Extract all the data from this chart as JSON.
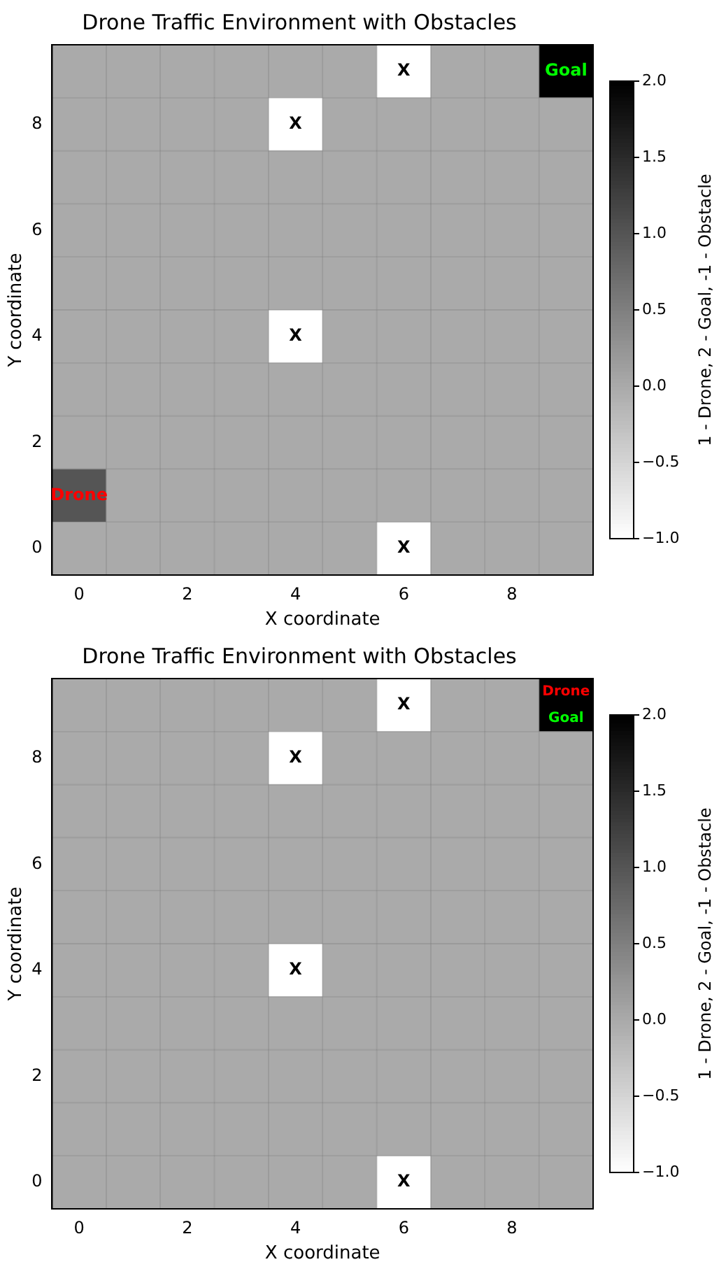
{
  "chart_data": [
    {
      "type": "heatmap",
      "title": "Drone Traffic Environment with Obstacles",
      "xlabel": "X coordinate",
      "ylabel": "Y coordinate",
      "clabel": "1 - Drone, 2 - Goal, -1 - Obstacle",
      "grid": true,
      "categories": [
        "0",
        null,
        "2",
        null,
        "4",
        null,
        "6",
        null,
        "8",
        null
      ],
      "y_categories": [
        null,
        "8",
        null,
        "6",
        null,
        "4",
        null,
        "2",
        null,
        "0"
      ],
      "cells": [
        [
          0,
          0,
          0,
          0,
          0,
          0,
          -1,
          0,
          0,
          2
        ],
        [
          0,
          0,
          0,
          0,
          -1,
          0,
          0,
          0,
          0,
          0
        ],
        [
          0,
          0,
          0,
          0,
          0,
          0,
          0,
          0,
          0,
          0
        ],
        [
          0,
          0,
          0,
          0,
          0,
          0,
          0,
          0,
          0,
          0
        ],
        [
          0,
          0,
          0,
          0,
          0,
          0,
          0,
          0,
          0,
          0
        ],
        [
          0,
          0,
          0,
          0,
          -1,
          0,
          0,
          0,
          0,
          0
        ],
        [
          0,
          0,
          0,
          0,
          0,
          0,
          0,
          0,
          0,
          0
        ],
        [
          0,
          0,
          0,
          0,
          0,
          0,
          0,
          0,
          0,
          0
        ],
        [
          1,
          0,
          0,
          0,
          0,
          0,
          0,
          0,
          0,
          0
        ],
        [
          0,
          0,
          0,
          0,
          0,
          0,
          -1,
          0,
          0,
          0
        ]
      ],
      "cell_labels": [
        [
          null,
          null,
          null,
          null,
          null,
          null,
          "X",
          null,
          null,
          "Goal"
        ],
        [
          null,
          null,
          null,
          null,
          "X",
          null,
          null,
          null,
          null,
          null
        ],
        [
          null,
          null,
          null,
          null,
          null,
          null,
          null,
          null,
          null,
          null
        ],
        [
          null,
          null,
          null,
          null,
          null,
          null,
          null,
          null,
          null,
          null
        ],
        [
          null,
          null,
          null,
          null,
          null,
          null,
          null,
          null,
          null,
          null
        ],
        [
          null,
          null,
          null,
          null,
          "X",
          null,
          null,
          null,
          null,
          null
        ],
        [
          null,
          null,
          null,
          null,
          null,
          null,
          null,
          null,
          null,
          null
        ],
        [
          null,
          null,
          null,
          null,
          null,
          null,
          null,
          null,
          null,
          null
        ],
        [
          "Drone",
          null,
          null,
          null,
          null,
          null,
          null,
          null,
          null,
          null
        ],
        [
          null,
          null,
          null,
          null,
          null,
          null,
          "X",
          null,
          null,
          null
        ]
      ],
      "clim": [
        -1,
        2
      ],
      "cticks": [
        {
          "value": -1,
          "label": "−1.0"
        },
        -0.5,
        {
          "value": 0,
          "label": "0.0"
        },
        0.5,
        {
          "value": 1,
          "label": "1.0"
        },
        1.5,
        {
          "value": 2,
          "label": "2.0"
        }
      ]
    },
    {
      "type": "heatmap",
      "title": "Drone Traffic Environment with Obstacles",
      "xlabel": "X coordinate",
      "ylabel": "Y coordinate",
      "clabel": "1 - Drone, 2 - Goal, -1 - Obstacle",
      "grid": true,
      "categories": [
        "0",
        null,
        "2",
        null,
        "4",
        null,
        "6",
        null,
        "8",
        null
      ],
      "y_categories": [
        null,
        "8",
        null,
        "6",
        null,
        "4",
        null,
        "2",
        null,
        "0"
      ],
      "cells": [
        [
          0,
          0,
          0,
          0,
          0,
          0,
          -1,
          0,
          0,
          2
        ],
        [
          0,
          0,
          0,
          0,
          -1,
          0,
          0,
          0,
          0,
          0
        ],
        [
          0,
          0,
          0,
          0,
          0,
          0,
          0,
          0,
          0,
          0
        ],
        [
          0,
          0,
          0,
          0,
          0,
          0,
          0,
          0,
          0,
          0
        ],
        [
          0,
          0,
          0,
          0,
          0,
          0,
          0,
          0,
          0,
          0
        ],
        [
          0,
          0,
          0,
          0,
          -1,
          0,
          0,
          0,
          0,
          0
        ],
        [
          0,
          0,
          0,
          0,
          0,
          0,
          0,
          0,
          0,
          0
        ],
        [
          0,
          0,
          0,
          0,
          0,
          0,
          0,
          0,
          0,
          0
        ],
        [
          0,
          0,
          0,
          0,
          0,
          0,
          0,
          0,
          0,
          0
        ],
        [
          0,
          0,
          0,
          0,
          0,
          0,
          -1,
          0,
          0,
          0
        ]
      ],
      "cell_labels": [
        [
          null,
          null,
          null,
          null,
          null,
          null,
          "X",
          null,
          null,
          [
            "Drone",
            "Goal"
          ]
        ],
        [
          null,
          null,
          null,
          null,
          "X",
          null,
          null,
          null,
          null,
          null
        ],
        [
          null,
          null,
          null,
          null,
          null,
          null,
          null,
          null,
          null,
          null
        ],
        [
          null,
          null,
          null,
          null,
          null,
          null,
          null,
          null,
          null,
          null
        ],
        [
          null,
          null,
          null,
          null,
          null,
          null,
          null,
          null,
          null,
          null
        ],
        [
          null,
          null,
          null,
          null,
          "X",
          null,
          null,
          null,
          null,
          null
        ],
        [
          null,
          null,
          null,
          null,
          null,
          null,
          null,
          null,
          null,
          null
        ],
        [
          null,
          null,
          null,
          null,
          null,
          null,
          null,
          null,
          null,
          null
        ],
        [
          null,
          null,
          null,
          null,
          null,
          null,
          null,
          null,
          null,
          null
        ],
        [
          null,
          null,
          null,
          null,
          null,
          null,
          "X",
          null,
          null,
          null
        ]
      ],
      "clim": [
        -1,
        2
      ],
      "cticks": [
        {
          "value": -1,
          "label": "−1.0"
        },
        -0.5,
        {
          "value": 0,
          "label": "0.0"
        },
        0.5,
        {
          "value": 1,
          "label": "1.0"
        },
        1.5,
        {
          "value": 2,
          "label": "2.0"
        }
      ]
    }
  ]
}
